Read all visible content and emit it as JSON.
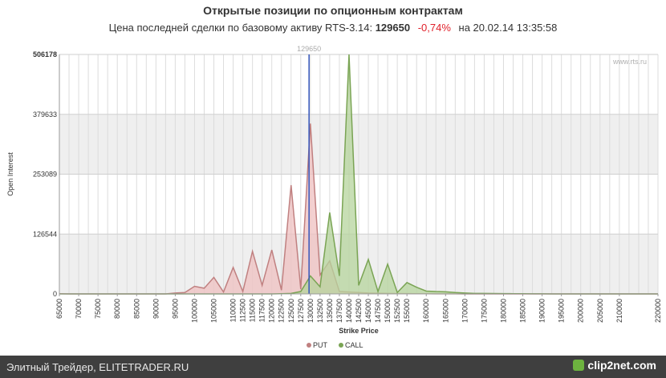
{
  "header": {
    "title": "Открытые позиции по опционным контрактам",
    "subtitle_prefix": "Цена последней сделки по базовому активу RTS-3.14:",
    "last_price": "129650",
    "change": "-0,74%",
    "timestamp": "на 20.02.14 13:35:58"
  },
  "watermark": "www.rts.ru",
  "footer": {
    "left_text": "Элитный Трейдер, ELITETRADER.RU",
    "logo_text": "clip2net.com"
  },
  "colors": {
    "put_fill": "#efc0c0",
    "put_line": "#c08080",
    "call_fill": "#b6d49c",
    "call_line": "#7aa454",
    "marker_line": "#3355bb",
    "band": "#efefef"
  },
  "chart_data": {
    "type": "area",
    "xlabel": "Strike Price",
    "ylabel": "Open Interest",
    "ylim": [
      0,
      506178
    ],
    "yticks": [
      0,
      126544,
      253089,
      379633,
      506178
    ],
    "marker": {
      "value": 129650,
      "label": "129650"
    },
    "x": [
      65000,
      67500,
      70000,
      72500,
      75000,
      77500,
      80000,
      82500,
      85000,
      87500,
      90000,
      92500,
      95000,
      97500,
      100000,
      102500,
      105000,
      107500,
      110000,
      112500,
      115000,
      117500,
      120000,
      122500,
      125000,
      127500,
      130000,
      132500,
      135000,
      137500,
      140000,
      142500,
      145000,
      147500,
      150000,
      152500,
      155000,
      157500,
      160000,
      162500,
      165000,
      167500,
      170000,
      172500,
      175000,
      177500,
      180000,
      182500,
      185000,
      187500,
      190000,
      192500,
      195000,
      197500,
      200000,
      202500,
      205000,
      207500,
      210000,
      212500,
      215000,
      217500,
      220000
    ],
    "xtick_labels": [
      "65000",
      "70000",
      "75000",
      "80000",
      "85000",
      "90000",
      "95000",
      "100000",
      "105000",
      "110000",
      "112500",
      "115000",
      "117500",
      "120000",
      "122500",
      "125000",
      "127500",
      "130000",
      "132500",
      "135000",
      "137500",
      "140000",
      "142500",
      "145000",
      "147500",
      "150000",
      "152500",
      "155000",
      "160000",
      "165000",
      "170000",
      "175000",
      "180000",
      "185000",
      "190000",
      "195000",
      "200000",
      "205000",
      "210000",
      "220000"
    ],
    "series": [
      {
        "name": "PUT",
        "values": [
          500,
          0,
          0,
          0,
          0,
          0,
          0,
          0,
          0,
          0,
          0,
          0,
          2000,
          3000,
          16000,
          12000,
          35000,
          4000,
          56000,
          5000,
          90000,
          18000,
          93000,
          8000,
          230000,
          10000,
          360000,
          40000,
          70000,
          5000,
          4000,
          3000,
          2000,
          1500,
          1000,
          800,
          600,
          500,
          400,
          300,
          200,
          150,
          100,
          80,
          60,
          50,
          40,
          30,
          30,
          20,
          20,
          10,
          10,
          10,
          10,
          5,
          5,
          5,
          5,
          5,
          5,
          5,
          0
        ]
      },
      {
        "name": "CALL",
        "values": [
          0,
          0,
          0,
          0,
          0,
          0,
          0,
          0,
          0,
          0,
          0,
          0,
          0,
          0,
          0,
          0,
          0,
          0,
          0,
          0,
          0,
          0,
          0,
          500,
          1000,
          5000,
          38000,
          15000,
          172000,
          38000,
          506178,
          18000,
          73000,
          5000,
          63000,
          3000,
          24000,
          14000,
          6000,
          5000,
          4500,
          3000,
          2000,
          1000,
          1000,
          800,
          600,
          500,
          400,
          300,
          200,
          100,
          100,
          100,
          100,
          100,
          100,
          100,
          50,
          50,
          50,
          50,
          0
        ]
      }
    ],
    "legend": "bottom-center",
    "grid": true
  }
}
